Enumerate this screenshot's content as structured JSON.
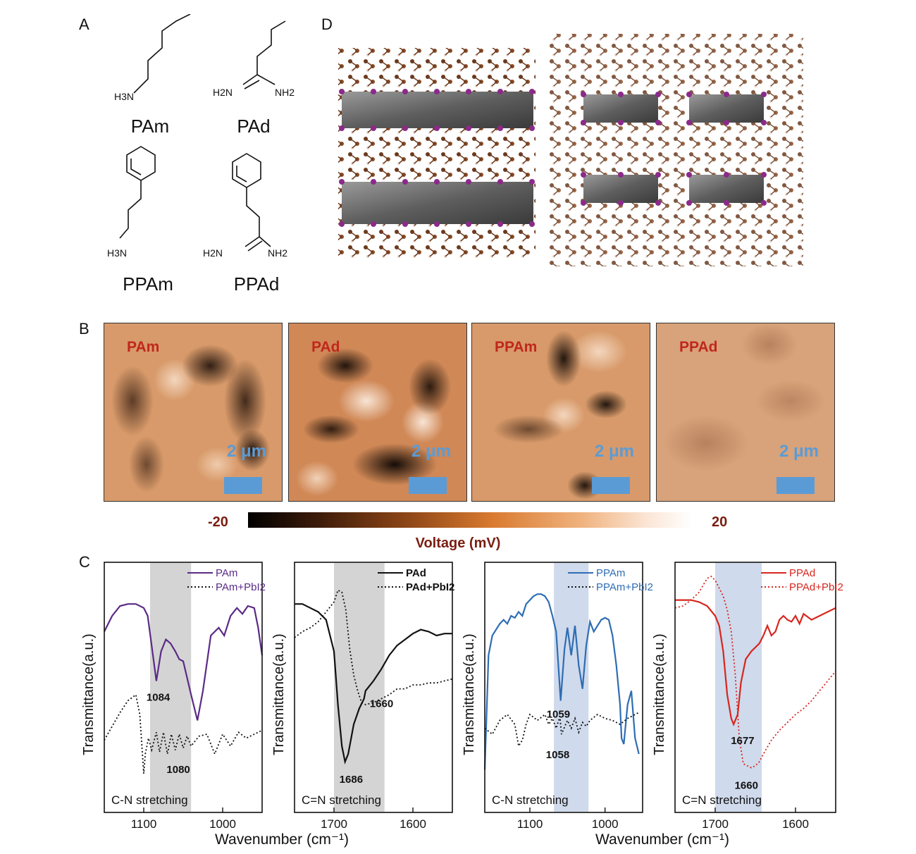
{
  "panels": {
    "A": "A",
    "B": "B",
    "C": "C",
    "D": "D"
  },
  "molecules": [
    {
      "name": "PAm",
      "amine": "H3N",
      "type": "amine"
    },
    {
      "name": "PAd",
      "amine_left": "H2N",
      "amine_right": "NH2",
      "type": "amidine"
    },
    {
      "name": "PPAm",
      "amine": "H3N",
      "type": "amine"
    },
    {
      "name": "PPAd",
      "amine_left": "H2N",
      "amine_right": "NH2",
      "type": "amidine"
    }
  ],
  "afm": {
    "images": [
      {
        "label": "PAm",
        "scale": "2 μm"
      },
      {
        "label": "PAd",
        "scale": "2 μm"
      },
      {
        "label": "PPAm",
        "scale": "2 μm"
      },
      {
        "label": "PPAd",
        "scale": "2 μm"
      }
    ],
    "colorbar": {
      "min": "-20",
      "max": "20",
      "title": "Voltage (mV)"
    }
  },
  "colors": {
    "pam": "#5b2a86",
    "pad": "#111111",
    "ppam": "#2e6db3",
    "ppad": "#d7261e",
    "shade_gray": "#d4d4d4",
    "shade_blue": "#cfdaec"
  },
  "chart_data": [
    {
      "type": "line",
      "xlabel": "",
      "ylabel": "Transmittance(a.u.)",
      "xlim": [
        1150,
        950
      ],
      "xticks": [
        "1100",
        "1000"
      ],
      "shade": [
        1092,
        1040
      ],
      "note": "C-N stretching",
      "series": [
        {
          "name": "PAm",
          "style": "solid",
          "color": "#5b2a86",
          "x": [
            1150,
            1140,
            1130,
            1120,
            1110,
            1100,
            1095,
            1090,
            1084,
            1078,
            1072,
            1066,
            1060,
            1055,
            1050,
            1040,
            1032,
            1025,
            1015,
            1005,
            998,
            990,
            982,
            975,
            968,
            960,
            955,
            950
          ],
          "y": [
            0.72,
            0.8,
            0.85,
            0.86,
            0.86,
            0.84,
            0.8,
            0.65,
            0.47,
            0.62,
            0.68,
            0.66,
            0.62,
            0.58,
            0.57,
            0.4,
            0.27,
            0.42,
            0.7,
            0.74,
            0.7,
            0.8,
            0.84,
            0.81,
            0.85,
            0.84,
            0.74,
            0.6
          ]
        },
        {
          "name": "PAm+PbI2",
          "style": "dotted",
          "color": "#111111",
          "x": [
            1150,
            1140,
            1130,
            1120,
            1110,
            1105,
            1100,
            1098,
            1094,
            1090,
            1084,
            1080,
            1075,
            1070,
            1065,
            1060,
            1055,
            1050,
            1045,
            1040,
            1030,
            1020,
            1010,
            1000,
            990,
            980,
            970,
            960,
            950
          ],
          "y": [
            0.17,
            0.24,
            0.31,
            0.37,
            0.4,
            0.3,
            0.0,
            0.1,
            0.18,
            0.12,
            0.21,
            0.11,
            0.21,
            0.1,
            0.2,
            0.12,
            0.2,
            0.13,
            0.19,
            0.14,
            0.19,
            0.2,
            0.1,
            0.2,
            0.14,
            0.21,
            0.18,
            0.2,
            0.22
          ]
        }
      ]
    },
    {
      "type": "line",
      "xlabel": "",
      "ylabel": "Transmittance(a.u.)",
      "xlim": [
        1750,
        1550
      ],
      "xticks": [
        "1700",
        "1600"
      ],
      "shade": [
        1700,
        1636
      ],
      "note": "C=N stretching",
      "series": [
        {
          "name": "PAd",
          "style": "solid",
          "color": "#111111",
          "x": [
            1750,
            1740,
            1730,
            1720,
            1710,
            1700,
            1695,
            1690,
            1686,
            1682,
            1675,
            1668,
            1662,
            1660,
            1650,
            1640,
            1630,
            1620,
            1610,
            1600,
            1590,
            1580,
            1570,
            1560,
            1550
          ],
          "y": [
            0.86,
            0.86,
            0.84,
            0.82,
            0.78,
            0.62,
            0.35,
            0.14,
            0.06,
            0.1,
            0.25,
            0.33,
            0.38,
            0.42,
            0.47,
            0.53,
            0.6,
            0.65,
            0.68,
            0.71,
            0.73,
            0.72,
            0.7,
            0.71,
            0.71
          ]
        },
        {
          "name": "PAd+PbI2",
          "style": "dotted",
          "color": "#111111",
          "x": [
            1750,
            1740,
            1730,
            1720,
            1710,
            1700,
            1695,
            1690,
            1685,
            1680,
            1675,
            1670,
            1665,
            1660,
            1650,
            1640,
            1630,
            1620,
            1610,
            1600,
            1590,
            1580,
            1570,
            1560,
            1550
          ],
          "y": [
            0.69,
            0.72,
            0.74,
            0.77,
            0.82,
            0.87,
            0.93,
            0.92,
            0.83,
            0.63,
            0.5,
            0.42,
            0.36,
            0.35,
            0.36,
            0.38,
            0.4,
            0.43,
            0.43,
            0.45,
            0.45,
            0.46,
            0.46,
            0.47,
            0.48
          ]
        }
      ]
    },
    {
      "type": "line",
      "xlabel": "",
      "ylabel": "Transmittance(a.u.)",
      "xlim": [
        1160,
        950
      ],
      "xticks": [
        "1100",
        "1000"
      ],
      "shade": [
        1068,
        1022
      ],
      "note": "C-N stretching",
      "series": [
        {
          "name": "PPAm",
          "style": "solid",
          "color": "#2e6db3",
          "x": [
            1160,
            1155,
            1150,
            1145,
            1140,
            1135,
            1130,
            1125,
            1120,
            1115,
            1110,
            1105,
            1100,
            1095,
            1090,
            1085,
            1080,
            1075,
            1070,
            1065,
            1059,
            1054,
            1050,
            1045,
            1040,
            1035,
            1030,
            1025,
            1020,
            1015,
            1010,
            1005,
            1000,
            995,
            990,
            985,
            980,
            978,
            975,
            970,
            965,
            960,
            955
          ],
          "y": [
            0.02,
            0.6,
            0.7,
            0.73,
            0.76,
            0.78,
            0.76,
            0.8,
            0.79,
            0.82,
            0.8,
            0.86,
            0.88,
            0.9,
            0.91,
            0.91,
            0.9,
            0.87,
            0.8,
            0.72,
            0.37,
            0.63,
            0.74,
            0.6,
            0.75,
            0.55,
            0.43,
            0.65,
            0.77,
            0.72,
            0.75,
            0.78,
            0.79,
            0.78,
            0.7,
            0.55,
            0.35,
            0.18,
            0.15,
            0.35,
            0.42,
            0.18,
            0.1
          ]
        },
        {
          "name": "PPAm+PbI2",
          "style": "dotted",
          "color": "#111111",
          "x": [
            1160,
            1150,
            1140,
            1130,
            1120,
            1115,
            1110,
            1105,
            1100,
            1090,
            1080,
            1075,
            1070,
            1065,
            1060,
            1058,
            1050,
            1045,
            1040,
            1035,
            1030,
            1025,
            1020,
            1010,
            1000,
            990,
            980,
            970,
            960,
            955
          ],
          "y": [
            0.23,
            0.2,
            0.27,
            0.3,
            0.25,
            0.14,
            0.17,
            0.25,
            0.3,
            0.27,
            0.3,
            0.25,
            0.28,
            0.23,
            0.29,
            0.2,
            0.27,
            0.23,
            0.28,
            0.21,
            0.26,
            0.24,
            0.27,
            0.3,
            0.28,
            0.27,
            0.25,
            0.28,
            0.3,
            0.31
          ]
        }
      ]
    },
    {
      "type": "line",
      "xlabel": "",
      "ylabel": "Transmittance(a.u.)",
      "xlim": [
        1750,
        1550
      ],
      "xticks": [
        "1700",
        "1600"
      ],
      "shade": [
        1700,
        1642
      ],
      "note": "C=N stretching",
      "series": [
        {
          "name": "PPAd",
          "style": "solid",
          "color": "#d7261e",
          "x": [
            1750,
            1740,
            1730,
            1720,
            1710,
            1700,
            1695,
            1690,
            1685,
            1680,
            1677,
            1672,
            1668,
            1662,
            1655,
            1650,
            1645,
            1640,
            1635,
            1630,
            1625,
            1620,
            1615,
            1610,
            1605,
            1600,
            1595,
            1590,
            1580,
            1570,
            1560,
            1550
          ],
          "y": [
            0.88,
            0.88,
            0.88,
            0.87,
            0.85,
            0.8,
            0.75,
            0.62,
            0.4,
            0.28,
            0.25,
            0.3,
            0.46,
            0.58,
            0.62,
            0.64,
            0.66,
            0.7,
            0.75,
            0.7,
            0.72,
            0.78,
            0.8,
            0.78,
            0.77,
            0.8,
            0.76,
            0.81,
            0.78,
            0.8,
            0.82,
            0.84
          ]
        },
        {
          "name": "PPAd+PbI2",
          "style": "dotted",
          "color": "#d7261e",
          "x": [
            1750,
            1740,
            1730,
            1720,
            1710,
            1705,
            1700,
            1695,
            1690,
            1685,
            1680,
            1675,
            1670,
            1665,
            1660,
            1655,
            1650,
            1645,
            1640,
            1630,
            1620,
            1610,
            1600,
            1590,
            1580,
            1570,
            1560,
            1550
          ],
          "y": [
            0.84,
            0.85,
            0.88,
            0.92,
            0.99,
            1.0,
            0.98,
            0.94,
            0.9,
            0.83,
            0.72,
            0.5,
            0.18,
            0.05,
            0.04,
            0.03,
            0.04,
            0.06,
            0.1,
            0.17,
            0.22,
            0.26,
            0.3,
            0.33,
            0.37,
            0.42,
            0.47,
            0.52
          ]
        }
      ]
    }
  ],
  "peak_labels": [
    [
      "1084",
      "1080"
    ],
    [
      "1660",
      "1686"
    ],
    [
      "1059",
      "1058"
    ],
    [
      "1677",
      "1660"
    ]
  ],
  "shared_xlabel": "Wavenumber (cm⁻¹)"
}
